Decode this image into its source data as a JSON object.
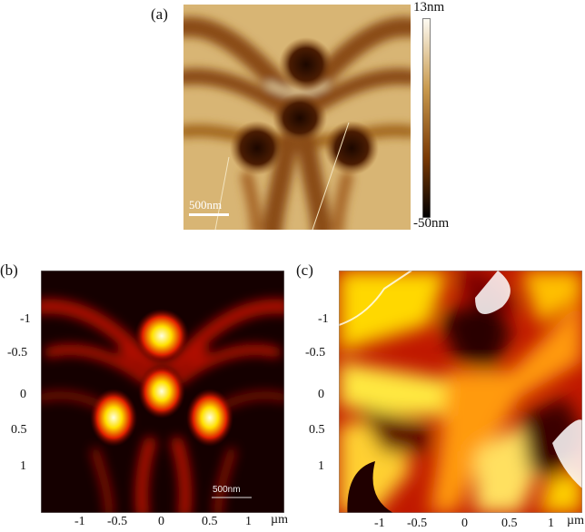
{
  "panels": {
    "a": {
      "label": "(a)",
      "scalebar": "500nm",
      "colorbar": {
        "max_label": "13nm",
        "min_label": "-50nm",
        "colors": [
          "#fdfbf3",
          "#c99a4e",
          "#7a3a05",
          "#000000"
        ]
      }
    },
    "b": {
      "label": "(b)",
      "scalebar": "500nm",
      "y_ticks": [
        "-1",
        "-0.5",
        "0",
        "0.5",
        "1"
      ],
      "x_ticks": [
        "-1",
        "-0.5",
        "0",
        "0.5",
        "1"
      ],
      "x_unit": "µm"
    },
    "c": {
      "label": "(c)",
      "y_ticks": [
        "-1",
        "-0.5",
        "0",
        "0.5",
        "1"
      ],
      "x_ticks": [
        "-1",
        "-0.5",
        "0",
        "0.5",
        "1"
      ],
      "x_unit": "µm"
    }
  }
}
